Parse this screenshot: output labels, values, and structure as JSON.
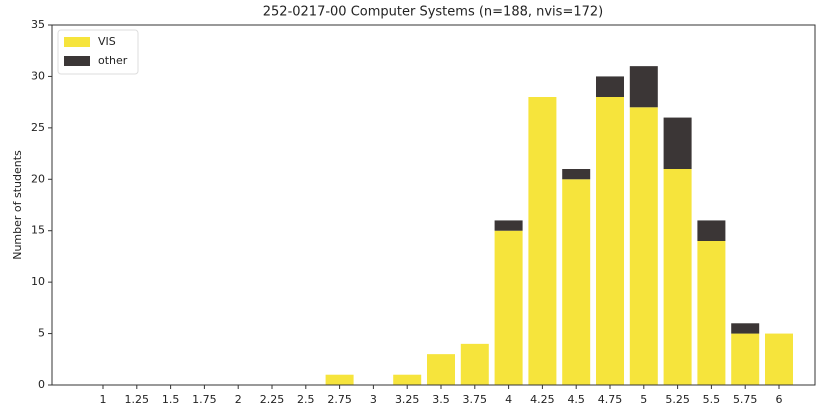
{
  "chart_data": {
    "type": "bar",
    "stacked": true,
    "title": "252-0217-00 Computer Systems (n=188, nvis=172)",
    "y_label": "Number of students",
    "categories": [
      "1",
      "1.25",
      "1.5",
      "1.75",
      "2",
      "2.25",
      "2.5",
      "2.75",
      "3",
      "3.25",
      "3.5",
      "3.75",
      "4",
      "4.25",
      "4.5",
      "4.75",
      "5",
      "5.25",
      "5.5",
      "5.75",
      "6"
    ],
    "series": [
      {
        "name": "VIS",
        "color": "#f6e43c",
        "values": [
          0,
          0,
          0,
          0,
          0,
          0,
          0,
          1,
          0,
          1,
          3,
          4,
          15,
          28,
          20,
          28,
          27,
          21,
          14,
          5,
          5
        ]
      },
      {
        "name": "other",
        "color": "#3b3636",
        "values": [
          0,
          0,
          0,
          0,
          0,
          0,
          0,
          0,
          0,
          0,
          0,
          0,
          1,
          0,
          1,
          2,
          4,
          5,
          2,
          1,
          0
        ]
      }
    ],
    "ylim": [
      0,
      35
    ],
    "yticks": [
      0,
      5,
      10,
      15,
      20,
      25,
      30,
      35
    ],
    "legend": "upper left",
    "grid": false
  }
}
